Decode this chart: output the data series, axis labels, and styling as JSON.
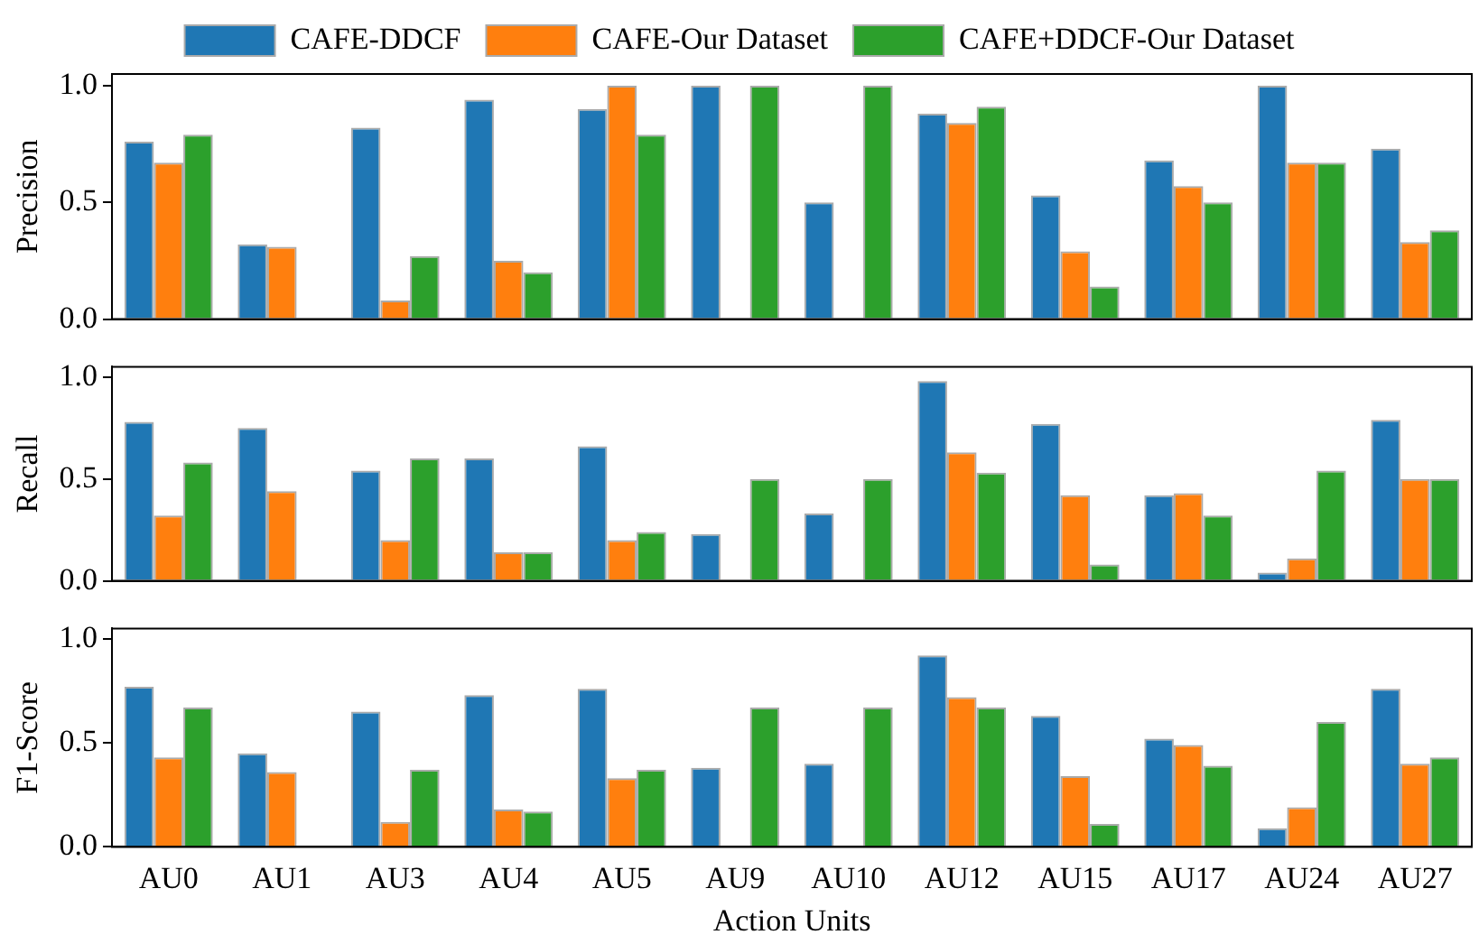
{
  "chart_data": [
    {
      "type": "bar",
      "ylabel": "Precision",
      "legend": "top",
      "tick_labels": "y",
      "categories": [
        null,
        null,
        null,
        null,
        null,
        null,
        null,
        null,
        null,
        null,
        null,
        null
      ],
      "ylim": [
        0,
        1.05
      ],
      "yticks": [
        {
          "value": 0,
          "label": "0.0"
        },
        {
          "value": 0.5,
          "label": "0.5"
        },
        {
          "value": 1,
          "label": "1.0"
        }
      ],
      "series": [
        {
          "name": "CAFE-DDCF",
          "color": "#1f77b4",
          "values": [
            0.76,
            0.32,
            0.82,
            0.94,
            0.9,
            1.0,
            0.5,
            0.88,
            0.53,
            0.68,
            1.0,
            0.73
          ]
        },
        {
          "name": "CAFE-Our Dataset",
          "color": "#ff7f0e",
          "values": [
            0.67,
            0.31,
            0.08,
            0.25,
            1.0,
            0,
            0,
            0.84,
            0.29,
            0.57,
            0.67,
            0.33
          ]
        },
        {
          "name": "CAFE+DDCF-Our Dataset",
          "color": "#2ca02c",
          "values": [
            0.79,
            0,
            0.27,
            0.2,
            0.79,
            1.0,
            1.0,
            0.91,
            0.14,
            0.5,
            0.67,
            0.38
          ]
        }
      ]
    },
    {
      "type": "bar",
      "ylabel": "Recall",
      "tick_labels": "y",
      "categories": [
        null,
        null,
        null,
        null,
        null,
        null,
        null,
        null,
        null,
        null,
        null,
        null
      ],
      "ylim": [
        0,
        1.05
      ],
      "yticks": [
        {
          "value": 0,
          "label": "0.0"
        },
        {
          "value": 0.5,
          "label": "0.5"
        },
        {
          "value": 1,
          "label": "1.0"
        }
      ],
      "series": [
        {
          "color": "#1f77b4",
          "values": [
            0.78,
            0.75,
            0.54,
            0.6,
            0.66,
            0.23,
            0.33,
            0.98,
            0.77,
            0.42,
            0.04,
            0.79
          ]
        },
        {
          "color": "#ff7f0e",
          "values": [
            0.32,
            0.44,
            0.2,
            0.14,
            0.2,
            0,
            0,
            0.63,
            0.42,
            0.43,
            0.11,
            0.5
          ]
        },
        {
          "color": "#2ca02c",
          "values": [
            0.58,
            0,
            0.6,
            0.14,
            0.24,
            0.5,
            0.5,
            0.53,
            0.08,
            0.32,
            0.54,
            0.5
          ]
        }
      ]
    },
    {
      "type": "bar",
      "ylabel": "F1-Score",
      "xlabel": "Action Units",
      "categories": [
        "AU0",
        "AU1",
        "AU3",
        "AU4",
        "AU5",
        "AU9",
        "AU10",
        "AU12",
        "AU15",
        "AU17",
        "AU24",
        "AU27"
      ],
      "ylim": [
        0,
        1.05
      ],
      "yticks": [
        {
          "value": 0,
          "label": "0.0"
        },
        {
          "value": 0.5,
          "label": "0.5"
        },
        {
          "value": 1,
          "label": "1.0"
        }
      ],
      "series": [
        {
          "color": "#1f77b4",
          "values": [
            0.77,
            0.45,
            0.65,
            0.73,
            0.76,
            0.38,
            0.4,
            0.92,
            0.63,
            0.52,
            0.09,
            0.76
          ]
        },
        {
          "color": "#ff7f0e",
          "values": [
            0.43,
            0.36,
            0.12,
            0.18,
            0.33,
            0,
            0,
            0.72,
            0.34,
            0.49,
            0.19,
            0.4
          ]
        },
        {
          "color": "#2ca02c",
          "values": [
            0.67,
            0,
            0.37,
            0.17,
            0.37,
            0.67,
            0.67,
            0.67,
            0.11,
            0.39,
            0.6,
            0.43
          ]
        }
      ]
    }
  ]
}
